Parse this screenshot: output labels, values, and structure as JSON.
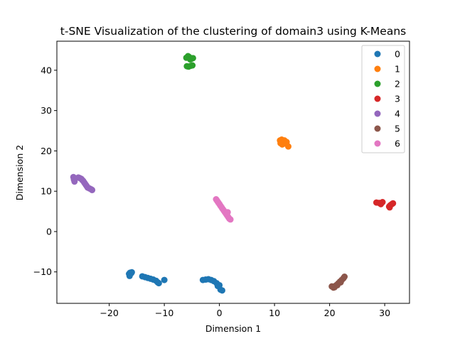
{
  "chart_data": {
    "type": "scatter",
    "title": "t-SNE Visualization of the clustering of domain3 using K-Means",
    "xlabel": "Dimension 1",
    "ylabel": "Dimension 2",
    "xlim": [
      -29.5,
      34.5
    ],
    "ylim": [
      -17.8,
      47.2
    ],
    "xticks": [
      -20,
      -10,
      0,
      10,
      20,
      30
    ],
    "yticks": [
      -10,
      0,
      10,
      20,
      30,
      40
    ],
    "xtick_labels": [
      "−20",
      "−10",
      "0",
      "10",
      "20",
      "30"
    ],
    "ytick_labels": [
      "−10",
      "0",
      "10",
      "20",
      "30",
      "40"
    ],
    "grid": false,
    "legend_position": "top-right",
    "series": [
      {
        "name": "0",
        "color": "#1f77b4",
        "x": [
          -16.4,
          -16.2,
          -16.0,
          -15.9,
          -16.3,
          -14.0,
          -13.5,
          -13.0,
          -12.5,
          -12.0,
          -11.5,
          -11.2,
          -11.0,
          -10.0,
          -3.0,
          -2.5,
          -2.0,
          -1.5,
          -1.0,
          -0.5,
          0.0,
          0.2,
          0.5,
          -0.3
        ],
        "y": [
          -10.5,
          -10.2,
          -10.3,
          -10.1,
          -11.0,
          -11.1,
          -11.3,
          -11.5,
          -11.7,
          -11.9,
          -12.2,
          -12.6,
          -12.8,
          -12.0,
          -12.0,
          -11.9,
          -11.8,
          -12.0,
          -12.3,
          -12.8,
          -13.3,
          -14.4,
          -14.6,
          -13.5
        ]
      },
      {
        "name": "1",
        "color": "#ff7f0e",
        "x": [
          11.0,
          11.3,
          11.5,
          11.8,
          12.0,
          12.2,
          11.4,
          11.7,
          12.5,
          11.1
        ],
        "y": [
          22.6,
          22.8,
          22.4,
          22.6,
          22.0,
          22.2,
          21.6,
          21.8,
          21.1,
          21.9
        ]
      },
      {
        "name": "2",
        "color": "#2ca02c",
        "x": [
          -6.0,
          -5.7,
          -5.5,
          -5.3,
          -5.0,
          -4.8,
          -5.6,
          -5.2,
          -5.9,
          -4.9
        ],
        "y": [
          43.1,
          43.5,
          43.3,
          42.7,
          42.9,
          43.0,
          40.9,
          41.1,
          41.0,
          41.2
        ]
      },
      {
        "name": "3",
        "color": "#d62728",
        "x": [
          28.5,
          29.0,
          29.3,
          29.6,
          29.2,
          30.8,
          31.0,
          31.3,
          31.5,
          30.9
        ],
        "y": [
          7.2,
          7.1,
          6.8,
          7.3,
          7.0,
          6.2,
          6.5,
          6.8,
          7.0,
          6.0
        ]
      },
      {
        "name": "4",
        "color": "#9467bd",
        "x": [
          -26.5,
          -26.3,
          -25.4,
          -25.1,
          -24.9,
          -24.7,
          -24.5,
          -24.3,
          -24.1,
          -23.9,
          -23.6,
          -23.3,
          -23.1,
          -26.4,
          -25.6
        ],
        "y": [
          13.5,
          12.4,
          13.3,
          13.1,
          12.8,
          12.5,
          12.1,
          11.7,
          11.3,
          10.9,
          10.7,
          10.5,
          10.3,
          12.9,
          13.4
        ]
      },
      {
        "name": "5",
        "color": "#8c564b",
        "x": [
          20.4,
          20.7,
          21.0,
          21.3,
          21.6,
          21.9,
          22.2,
          22.5,
          22.7,
          20.9,
          21.4,
          22.0
        ],
        "y": [
          -13.6,
          -13.9,
          -13.5,
          -13.2,
          -12.8,
          -12.4,
          -12.0,
          -11.6,
          -11.2,
          -13.8,
          -13.3,
          -12.6
        ]
      },
      {
        "name": "6",
        "color": "#e377c2",
        "x": [
          -0.6,
          -0.4,
          -0.2,
          0.0,
          0.2,
          0.4,
          0.6,
          0.8,
          1.0,
          1.2,
          1.4,
          1.6,
          1.8,
          2.0,
          1.5
        ],
        "y": [
          8.0,
          7.6,
          7.2,
          6.8,
          6.4,
          6.0,
          5.6,
          5.2,
          4.8,
          4.4,
          4.0,
          3.6,
          3.2,
          3.0,
          4.8
        ]
      }
    ]
  }
}
